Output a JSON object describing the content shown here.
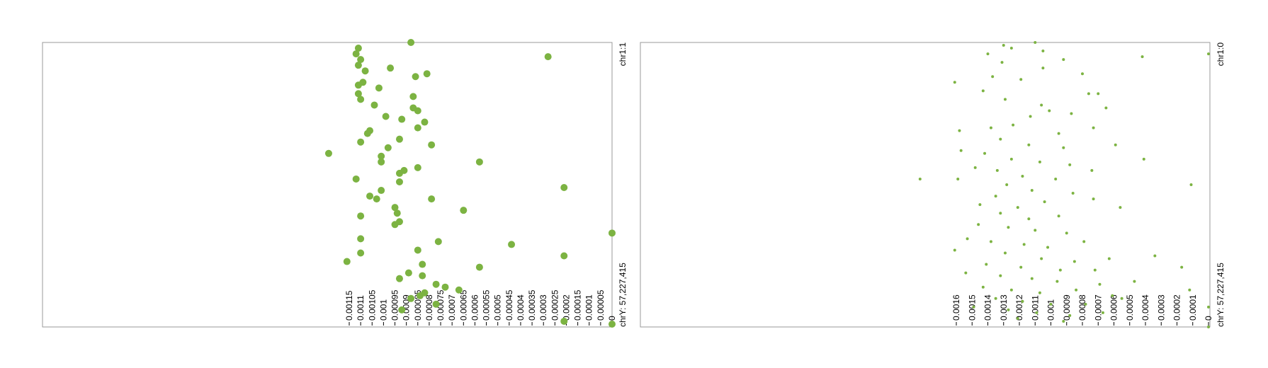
{
  "chart_data": [
    {
      "type": "scatter",
      "title": "",
      "xlabel": "",
      "ylabel": "",
      "value_axis": {
        "range": [
          0,
          0.00115
        ],
        "ticks": [
          "0",
          "0.00005",
          "0.0001",
          "0.00015",
          "0.0002",
          "0.00025",
          "0.0003",
          "0.00035",
          "0.0004",
          "0.00045",
          "0.0005",
          "0.00055",
          "0.0006",
          "0.00065",
          "0.0007",
          "0.00075",
          "0.0008",
          "0.00085",
          "0.0009",
          "0.00095",
          "0.001",
          "0.00105",
          "0.0011",
          "0.00115"
        ]
      },
      "position_axis": {
        "start_label": "chr1:1",
        "end_label": "chrY: 57,227,415"
      },
      "grid": false,
      "marker_color": "#7cb342",
      "marker_radius": 5,
      "points": [
        {
          "v": 0.00111,
          "p": 0.02
        },
        {
          "v": 0.00112,
          "p": 0.04
        },
        {
          "v": 0.0011,
          "p": 0.06
        },
        {
          "v": 0.00111,
          "p": 0.08
        },
        {
          "v": 0.00108,
          "p": 0.1
        },
        {
          "v": 0.00097,
          "p": 0.09
        },
        {
          "v": 0.00088,
          "p": 0.0
        },
        {
          "v": 0.00028,
          "p": 0.05
        },
        {
          "v": 0.00109,
          "p": 0.14
        },
        {
          "v": 0.00111,
          "p": 0.15
        },
        {
          "v": 0.00102,
          "p": 0.16
        },
        {
          "v": 0.00086,
          "p": 0.12
        },
        {
          "v": 0.00081,
          "p": 0.11
        },
        {
          "v": 0.00111,
          "p": 0.18
        },
        {
          "v": 0.0011,
          "p": 0.2
        },
        {
          "v": 0.00104,
          "p": 0.22
        },
        {
          "v": 0.00087,
          "p": 0.19
        },
        {
          "v": 0.00085,
          "p": 0.24
        },
        {
          "v": 0.00087,
          "p": 0.23
        },
        {
          "v": 0.00099,
          "p": 0.26
        },
        {
          "v": 0.00092,
          "p": 0.27
        },
        {
          "v": 0.00082,
          "p": 0.28
        },
        {
          "v": 0.00085,
          "p": 0.3
        },
        {
          "v": 0.00106,
          "p": 0.31
        },
        {
          "v": 0.00107,
          "p": 0.32
        },
        {
          "v": 0.00093,
          "p": 0.34
        },
        {
          "v": 0.0011,
          "p": 0.35
        },
        {
          "v": 0.00098,
          "p": 0.37
        },
        {
          "v": 0.00079,
          "p": 0.36
        },
        {
          "v": 0.00124,
          "p": 0.39
        },
        {
          "v": 0.00101,
          "p": 0.4
        },
        {
          "v": 0.00101,
          "p": 0.42
        },
        {
          "v": 0.00058,
          "p": 0.42
        },
        {
          "v": 0.00085,
          "p": 0.44
        },
        {
          "v": 0.00093,
          "p": 0.46
        },
        {
          "v": 0.00091,
          "p": 0.45
        },
        {
          "v": 0.00093,
          "p": 0.49
        },
        {
          "v": 0.00112,
          "p": 0.48
        },
        {
          "v": 0.00021,
          "p": 0.51
        },
        {
          "v": 0.00101,
          "p": 0.52
        },
        {
          "v": 0.00106,
          "p": 0.54
        },
        {
          "v": 0.00103,
          "p": 0.55
        },
        {
          "v": 0.00079,
          "p": 0.55
        },
        {
          "v": 0.00095,
          "p": 0.58
        },
        {
          "v": 0.00094,
          "p": 0.6
        },
        {
          "v": 0.00065,
          "p": 0.59
        },
        {
          "v": 0.0011,
          "p": 0.61
        },
        {
          "v": 0.00093,
          "p": 0.63
        },
        {
          "v": 0.00095,
          "p": 0.64
        },
        {
          "v": 0.0,
          "p": 0.67
        },
        {
          "v": 0.0011,
          "p": 0.69
        },
        {
          "v": 0.00076,
          "p": 0.7
        },
        {
          "v": 0.00044,
          "p": 0.71
        },
        {
          "v": 0.00085,
          "p": 0.73
        },
        {
          "v": 0.0011,
          "p": 0.74
        },
        {
          "v": 0.00021,
          "p": 0.75
        },
        {
          "v": 0.00116,
          "p": 0.77
        },
        {
          "v": 0.00058,
          "p": 0.79
        },
        {
          "v": 0.00083,
          "p": 0.78
        },
        {
          "v": 0.00089,
          "p": 0.81
        },
        {
          "v": 0.00093,
          "p": 0.83
        },
        {
          "v": 0.00083,
          "p": 0.82
        },
        {
          "v": 0.00077,
          "p": 0.85
        },
        {
          "v": 0.00073,
          "p": 0.86
        },
        {
          "v": 0.00067,
          "p": 0.87
        },
        {
          "v": 0.00084,
          "p": 0.89
        },
        {
          "v": 0.00088,
          "p": 0.9
        },
        {
          "v": 0.00077,
          "p": 0.92
        },
        {
          "v": 0.00082,
          "p": 0.88
        },
        {
          "v": 0.00092,
          "p": 0.94
        },
        {
          "v": 0.00021,
          "p": 0.98
        },
        {
          "v": 0.0,
          "p": 0.99
        }
      ]
    },
    {
      "type": "scatter",
      "title": "",
      "xlabel": "",
      "ylabel": "",
      "value_axis": {
        "range": [
          0,
          0.0016
        ],
        "ticks": [
          "0",
          "0.0001",
          "0.0002",
          "0.0003",
          "0.0004",
          "0.0005",
          "0.0006",
          "0.0007",
          "0.0008",
          "0.0009",
          "0.001",
          "0.0011",
          "0.0012",
          "0.0013",
          "0.0014",
          "0.0015",
          "0.0016"
        ]
      },
      "position_axis": {
        "start_label": "chr1:0",
        "end_label": "chrY: 57,227,415"
      },
      "grid": false,
      "marker_color": "#7cb342",
      "marker_radius": 2,
      "points": [
        {
          "v": 0.0013,
          "p": 0.01
        },
        {
          "v": 0.00125,
          "p": 0.02
        },
        {
          "v": 0.0011,
          "p": 0.0
        },
        {
          "v": 0.00105,
          "p": 0.03
        },
        {
          "v": 0.00092,
          "p": 0.06
        },
        {
          "v": 0.0014,
          "p": 0.04
        },
        {
          "v": 0.00131,
          "p": 0.07
        },
        {
          "v": 0.00105,
          "p": 0.09
        },
        {
          "v": 0.00137,
          "p": 0.12
        },
        {
          "v": 0.00161,
          "p": 0.14
        },
        {
          "v": 0.00119,
          "p": 0.13
        },
        {
          "v": 0.0008,
          "p": 0.11
        },
        {
          "v": 0.00076,
          "p": 0.18
        },
        {
          "v": 0.0007,
          "p": 0.18
        },
        {
          "v": 0.00042,
          "p": 0.05
        },
        {
          "v": 0.0,
          "p": 0.04
        },
        {
          "v": 0.00143,
          "p": 0.17
        },
        {
          "v": 0.00129,
          "p": 0.2
        },
        {
          "v": 0.00106,
          "p": 0.22
        },
        {
          "v": 0.00101,
          "p": 0.24
        },
        {
          "v": 0.00113,
          "p": 0.26
        },
        {
          "v": 0.00087,
          "p": 0.25
        },
        {
          "v": 0.00065,
          "p": 0.23
        },
        {
          "v": 0.00138,
          "p": 0.3
        },
        {
          "v": 0.00124,
          "p": 0.29
        },
        {
          "v": 0.00095,
          "p": 0.32
        },
        {
          "v": 0.00073,
          "p": 0.3
        },
        {
          "v": 0.00158,
          "p": 0.31
        },
        {
          "v": 0.00132,
          "p": 0.34
        },
        {
          "v": 0.00114,
          "p": 0.36
        },
        {
          "v": 0.00092,
          "p": 0.37
        },
        {
          "v": 0.00157,
          "p": 0.38
        },
        {
          "v": 0.00142,
          "p": 0.39
        },
        {
          "v": 0.00059,
          "p": 0.36
        },
        {
          "v": 0.00125,
          "p": 0.41
        },
        {
          "v": 0.00107,
          "p": 0.42
        },
        {
          "v": 0.00088,
          "p": 0.43
        },
        {
          "v": 0.00041,
          "p": 0.41
        },
        {
          "v": 0.00148,
          "p": 0.44
        },
        {
          "v": 0.00134,
          "p": 0.45
        },
        {
          "v": 0.00118,
          "p": 0.47
        },
        {
          "v": 0.00097,
          "p": 0.48
        },
        {
          "v": 0.00074,
          "p": 0.45
        },
        {
          "v": 0.00159,
          "p": 0.48
        },
        {
          "v": 0.00128,
          "p": 0.5
        },
        {
          "v": 0.00112,
          "p": 0.52
        },
        {
          "v": 0.00086,
          "p": 0.53
        },
        {
          "v": 0.00135,
          "p": 0.54
        },
        {
          "v": 0.00104,
          "p": 0.56
        },
        {
          "v": 0.00073,
          "p": 0.55
        },
        {
          "v": 0.00145,
          "p": 0.57
        },
        {
          "v": 0.00121,
          "p": 0.58
        },
        {
          "v": 0.00183,
          "p": 0.48
        },
        {
          "v": 0.00011,
          "p": 0.5
        },
        {
          "v": 0.00132,
          "p": 0.6
        },
        {
          "v": 0.00114,
          "p": 0.62
        },
        {
          "v": 0.00095,
          "p": 0.61
        },
        {
          "v": 0.00146,
          "p": 0.64
        },
        {
          "v": 0.00127,
          "p": 0.65
        },
        {
          "v": 0.0011,
          "p": 0.66
        },
        {
          "v": 0.0009,
          "p": 0.67
        },
        {
          "v": 0.00056,
          "p": 0.58
        },
        {
          "v": 0.00153,
          "p": 0.69
        },
        {
          "v": 0.00138,
          "p": 0.7
        },
        {
          "v": 0.00117,
          "p": 0.71
        },
        {
          "v": 0.00102,
          "p": 0.72
        },
        {
          "v": 0.00079,
          "p": 0.7
        },
        {
          "v": 0.00161,
          "p": 0.73
        },
        {
          "v": 0.00129,
          "p": 0.74
        },
        {
          "v": 0.00106,
          "p": 0.76
        },
        {
          "v": 0.00085,
          "p": 0.77
        },
        {
          "v": 0.00063,
          "p": 0.76
        },
        {
          "v": 0.00034,
          "p": 0.75
        },
        {
          "v": 0.00141,
          "p": 0.78
        },
        {
          "v": 0.00119,
          "p": 0.79
        },
        {
          "v": 0.00094,
          "p": 0.8
        },
        {
          "v": 0.00072,
          "p": 0.8
        },
        {
          "v": 0.00017,
          "p": 0.79
        },
        {
          "v": 0.00154,
          "p": 0.81
        },
        {
          "v": 0.00132,
          "p": 0.82
        },
        {
          "v": 0.00112,
          "p": 0.83
        },
        {
          "v": 0.00096,
          "p": 0.84
        },
        {
          "v": 0.00069,
          "p": 0.85
        },
        {
          "v": 0.00047,
          "p": 0.84
        },
        {
          "v": 0.00143,
          "p": 0.86
        },
        {
          "v": 0.00125,
          "p": 0.87
        },
        {
          "v": 0.00107,
          "p": 0.88
        },
        {
          "v": 0.00084,
          "p": 0.87
        },
        {
          "v": 0.00061,
          "p": 0.89
        },
        {
          "v": 0.00012,
          "p": 0.87
        },
        {
          "v": 0.00135,
          "p": 0.9
        },
        {
          "v": 0.00118,
          "p": 0.91
        },
        {
          "v": 0.001,
          "p": 0.92
        },
        {
          "v": 0.00078,
          "p": 0.92
        },
        {
          "v": 0.00055,
          "p": 0.9
        },
        {
          "v": 0.00149,
          "p": 0.93
        },
        {
          "v": 0.00127,
          "p": 0.94
        },
        {
          "v": 0.00109,
          "p": 0.95
        },
        {
          "v": 0.00088,
          "p": 0.96
        },
        {
          "v": 0.00067,
          "p": 0.95
        },
        {
          "v": 0.00121,
          "p": 0.97
        },
        {
          "v": 0.00092,
          "p": 0.98
        },
        {
          "v": 0.0,
          "p": 0.93
        },
        {
          "v": 0.0,
          "p": 1.0
        }
      ]
    }
  ]
}
